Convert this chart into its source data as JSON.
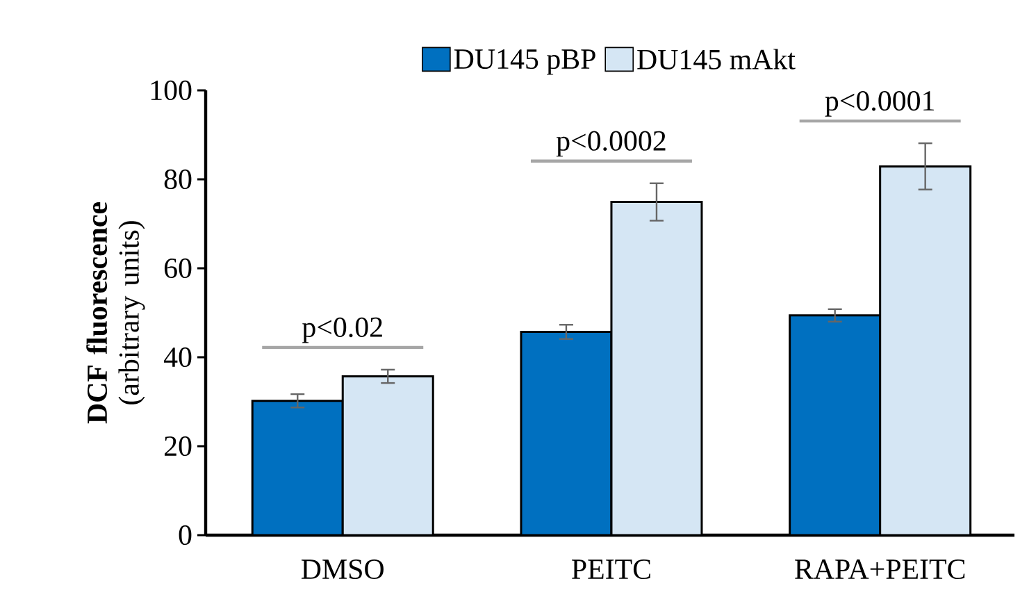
{
  "chart_data": {
    "type": "bar",
    "ylabel": "**DCF fluorescence** (arbitrary units)",
    "categories": [
      "DMSO",
      "PEITC",
      "RAPA+PEITC"
    ],
    "series": [
      {
        "name": "DU145 pBP",
        "color": "#0070c0",
        "values": [
          30.2,
          45.7,
          49.4
        ],
        "errors": [
          1.5,
          1.6,
          1.4
        ]
      },
      {
        "name": "DU145 mAkt",
        "color": "#d5e6f4",
        "values": [
          35.7,
          74.9,
          82.9
        ],
        "errors": [
          1.5,
          4.2,
          5.2
        ]
      }
    ],
    "annotations": [
      "p<0.02",
      "p<0.0002",
      "p<0.0001"
    ],
    "ylim": [
      0,
      100
    ],
    "yticks": [
      0,
      20,
      40,
      60,
      80,
      100
    ],
    "legend": "top",
    "grid": false
  }
}
